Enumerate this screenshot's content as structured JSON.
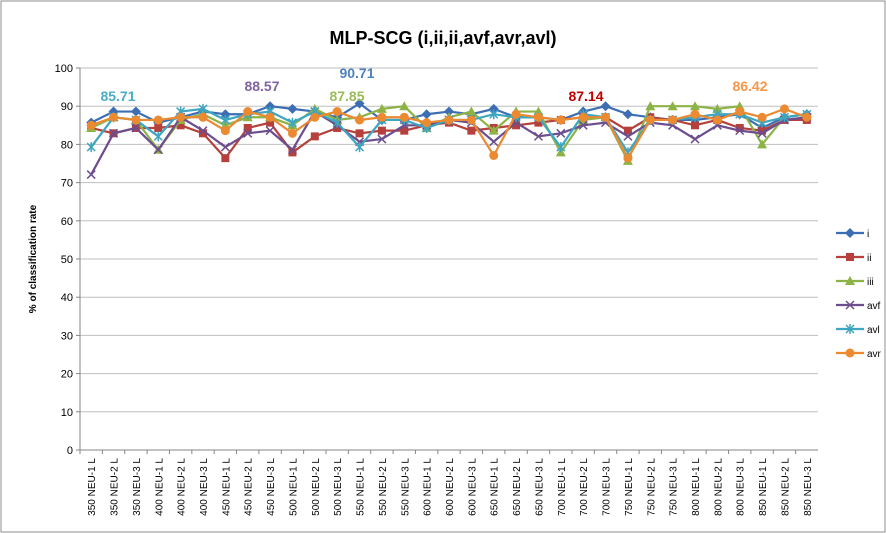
{
  "chart_data": {
    "type": "line",
    "title": "MLP-SCG (i,ii,ii,avf,avr,avl)",
    "y_label": "% of classification rate",
    "categories": [
      "350 NEU-1 L",
      "350 NEU-2 L",
      "350 NEU-3 L",
      "400 NEU-1 L",
      "400 NEU-2 L",
      "400 NEU-3 L",
      "450 NEU-1 L",
      "450 NEU-2 L",
      "450 NEU-3 L",
      "500 NEU-1 L",
      "500 NEU-2 L",
      "500 NEU-3 L",
      "550 NEU-1 L",
      "550 NEU-2 L",
      "550 NEU-3 L",
      "600 NEU-1 L",
      "600 NEU-2 L",
      "600 NEU-3 L",
      "650 NEU-1 L",
      "650 NEU-2 L",
      "650 NEU-3 L",
      "700 NEU-1 L",
      "700 NEU-2 L",
      "700 NEU-3 L",
      "750 NEU-1 L",
      "750 NEU-2 L",
      "750 NEU-3 L",
      "800 NEU-1 L",
      "800 NEU-2 L",
      "800 NEU-3 L",
      "850 NEU-1 L",
      "850 NEU-2 L",
      "850 NEU-3 L"
    ],
    "series": [
      {
        "name": "i",
        "color": "#3d6eb4",
        "marker": "diamond",
        "values": [
          85.7,
          88.6,
          88.6,
          85.7,
          87.1,
          88.6,
          87.9,
          87.9,
          90,
          89.3,
          88.6,
          87.1,
          90.7,
          86.4,
          86.4,
          87.9,
          88.6,
          87.9,
          89.3,
          87.1,
          87.1,
          86.4,
          88.6,
          90,
          87.9,
          87.1,
          86.4,
          86.4,
          87.1,
          87.9,
          84.3,
          87.1,
          87.9
        ]
      },
      {
        "name": "ii",
        "color": "#b5403c",
        "marker": "square",
        "values": [
          84.3,
          82.9,
          84.3,
          84.3,
          85,
          82.9,
          76.4,
          84.3,
          85.7,
          77.9,
          82.1,
          84.3,
          82.9,
          83.6,
          83.6,
          85,
          85.7,
          83.6,
          84.3,
          85,
          85.7,
          86.4,
          87.1,
          87.1,
          83.6,
          87.1,
          86.4,
          85,
          86.4,
          84.3,
          83.6,
          86.4,
          86.4
        ]
      },
      {
        "name": "iii",
        "color": "#8db346",
        "marker": "triangle",
        "values": [
          84.3,
          87.1,
          86.4,
          78.6,
          86.4,
          87.9,
          85,
          87.1,
          87.1,
          85,
          89.3,
          86.4,
          87.1,
          89.3,
          90,
          84.3,
          87.1,
          88.6,
          83.6,
          88.6,
          88.6,
          77.9,
          86.4,
          87.1,
          75.7,
          90,
          90,
          90,
          89.3,
          90,
          80,
          87.1,
          87.9
        ]
      },
      {
        "name": "avf",
        "color": "#6c4d8e",
        "marker": "x",
        "values": [
          72.1,
          82.9,
          84.3,
          78.6,
          87.1,
          83.6,
          79.3,
          82.9,
          83.6,
          78.6,
          88.6,
          85,
          80.7,
          81.4,
          85,
          85,
          86.4,
          85.7,
          80.7,
          85.7,
          82.1,
          82.9,
          85,
          85.7,
          82.1,
          85.7,
          85,
          81.4,
          85,
          83.6,
          82.9,
          86.4,
          87.1
        ]
      },
      {
        "name": "avl",
        "color": "#3ea6c0",
        "marker": "star",
        "values": [
          79.3,
          87.1,
          86.4,
          82.1,
          88.6,
          89.3,
          86.4,
          87.9,
          88.6,
          85.7,
          88.6,
          85.7,
          79.3,
          86.4,
          86.4,
          84.3,
          86.4,
          86.4,
          87.9,
          87.1,
          87.1,
          79.3,
          87.9,
          87.1,
          77.9,
          86.4,
          86.4,
          87.1,
          87.9,
          87.9,
          85.7,
          87.1,
          87.9
        ]
      },
      {
        "name": "avr",
        "color": "#ec8a32",
        "marker": "circle",
        "values": [
          85,
          87.1,
          86.4,
          86.4,
          87.1,
          87.1,
          83.6,
          88.6,
          87.1,
          82.9,
          87.1,
          88.6,
          86.4,
          87.1,
          87.1,
          85.7,
          86.4,
          86.4,
          77.1,
          87.9,
          87.1,
          86.4,
          87.1,
          87.1,
          76.4,
          86.4,
          86.4,
          87.9,
          86.4,
          88.6,
          87.1,
          89.3,
          87.1
        ]
      }
    ],
    "annotations": [
      {
        "text": "85.71",
        "color": "#4bacc6"
      },
      {
        "text": "88.57",
        "color": "#8064a2"
      },
      {
        "text": "90.71",
        "color": "#4f81bd"
      },
      {
        "text": "87.85",
        "color": "#9bbb59"
      },
      {
        "text": "87.14",
        "color": "#c00000"
      },
      {
        "text": "86.42",
        "color": "#f79646"
      }
    ],
    "ylim": [
      0,
      100
    ],
    "yticks": [
      0,
      10,
      20,
      30,
      40,
      50,
      60,
      70,
      80,
      90,
      100
    ],
    "grid": true,
    "legend": "right"
  }
}
